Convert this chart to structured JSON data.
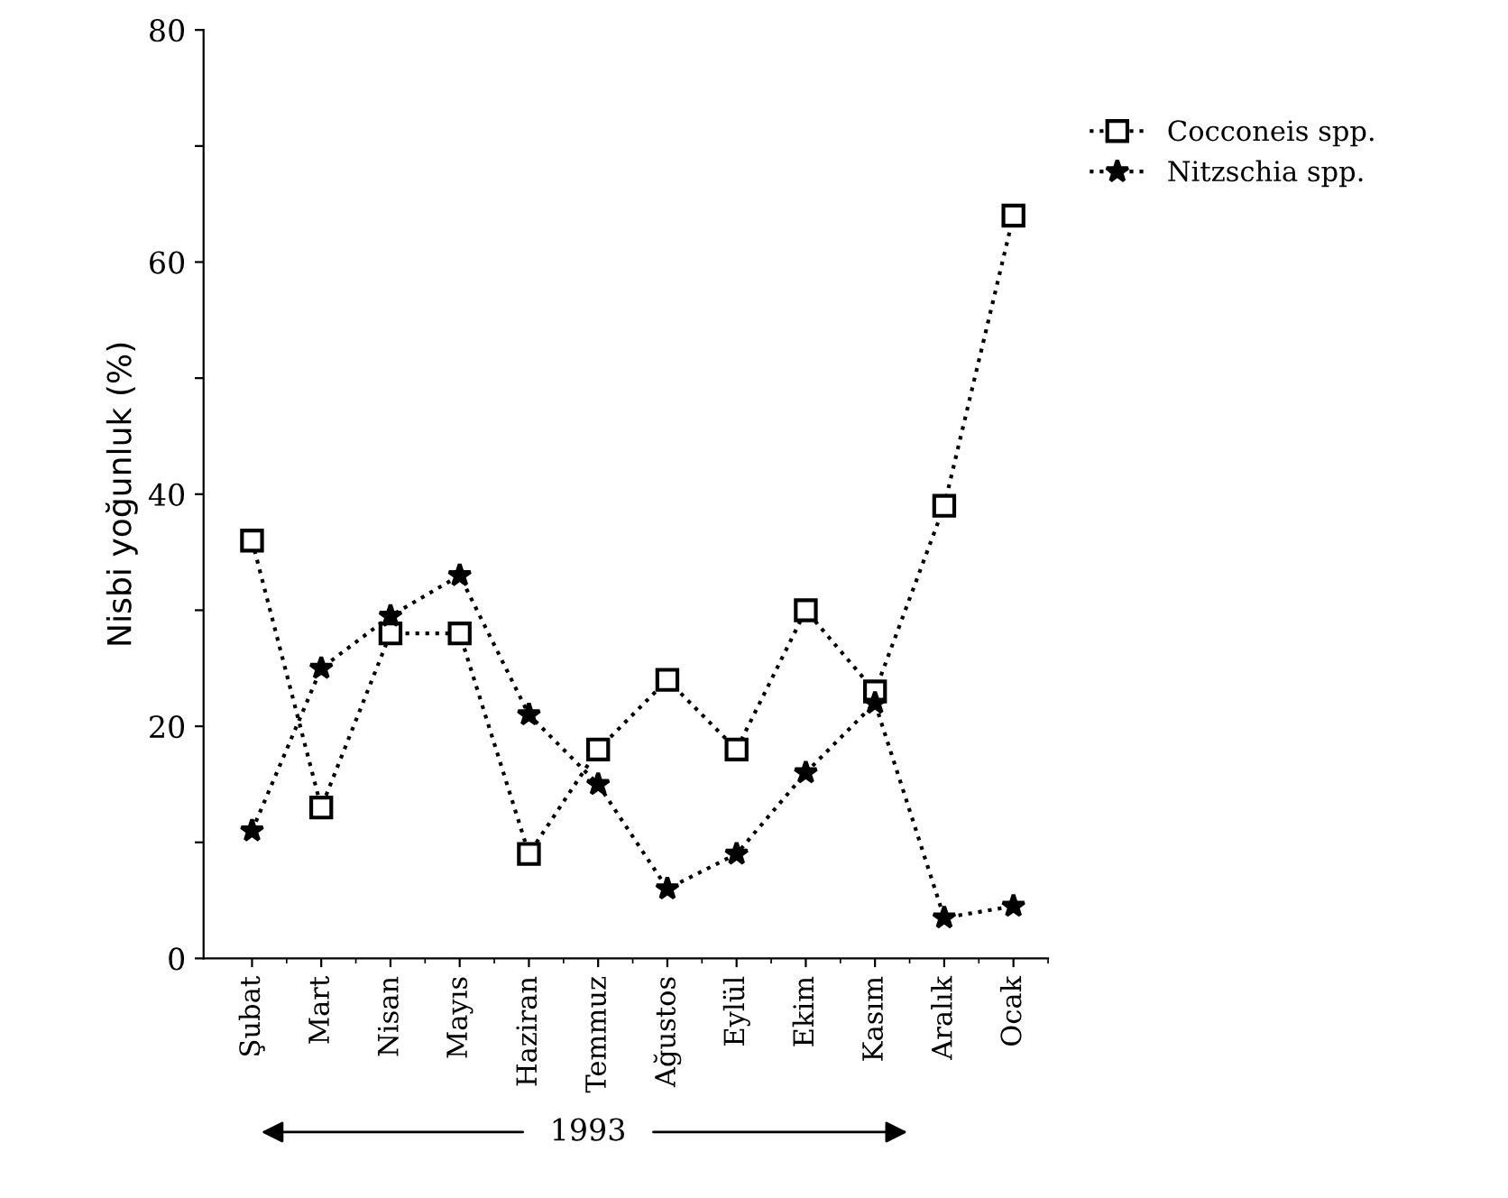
{
  "chart_data": {
    "type": "line",
    "ylabel": "Nisbi yoğunluk (%)",
    "categories": [
      "Şubat",
      "Mart",
      "Nisan",
      "Mayıs",
      "Haziran",
      "Temmuz",
      "Ağustos",
      "Eylül",
      "Ekim",
      "Kasım",
      "Aralık",
      "Ocak"
    ],
    "series": [
      {
        "name": "Cocconeis spp.",
        "color": "#000000",
        "marker": "square",
        "values": [
          36,
          13,
          28,
          28,
          9,
          18,
          24,
          18,
          30,
          23,
          39,
          64
        ]
      },
      {
        "name": "Nitzschia spp.",
        "color": "#000000",
        "marker": "star",
        "values": [
          11,
          25,
          29.5,
          33,
          21,
          15,
          6,
          9,
          16,
          22,
          3.5,
          4.5
        ]
      }
    ],
    "ylim": [
      0,
      80
    ],
    "yticks": [
      0,
      {
        "value": 10,
        "label": null
      },
      20,
      {
        "value": 30,
        "label": null
      },
      40,
      {
        "value": 50,
        "label": null
      },
      60,
      {
        "value": 70,
        "label": null
      },
      80
    ],
    "annotations": [
      "1993"
    ],
    "line_style": "dotted",
    "legend": "top right",
    "grid": false
  }
}
